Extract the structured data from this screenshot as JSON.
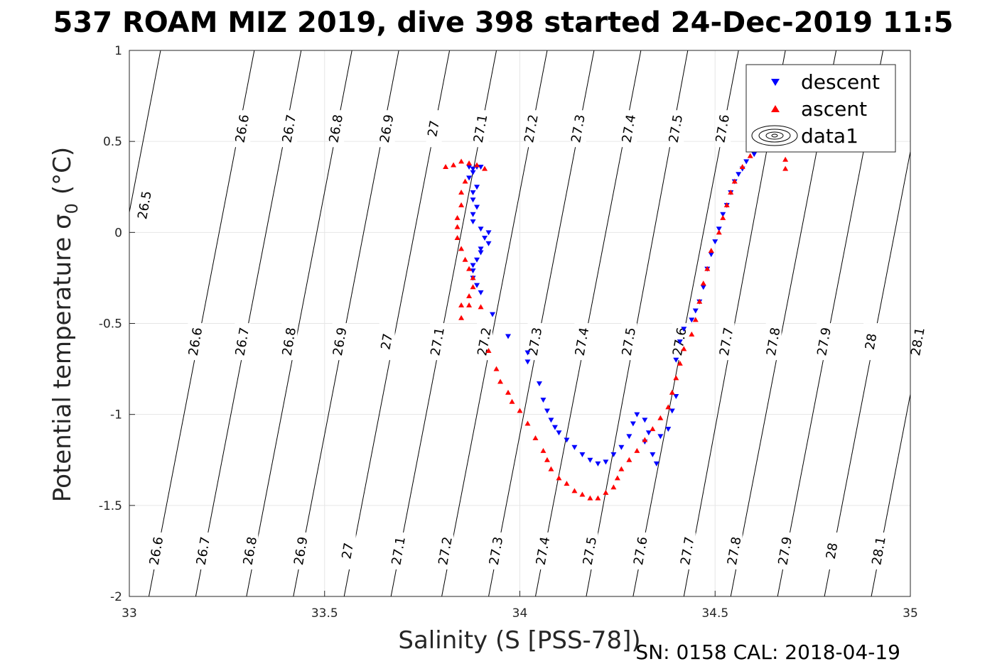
{
  "chart_data": {
    "type": "scatter",
    "title": "537 ROAM MIZ 2019, dive 398 started 24-Dec-2019 11:5",
    "xlabel": "Salinity (S [PSS-78])",
    "ylabel": "Potential temperature σ",
    "ylabel_sub": "0",
    "ylabel_unit": "(°C)",
    "xlim": [
      33,
      35
    ],
    "ylim": [
      -2,
      1
    ],
    "x_ticks": [
      "33",
      "33.5",
      "34",
      "34.5",
      "35"
    ],
    "y_ticks": [
      "-2",
      "-1.5",
      "-1",
      "-0.5",
      "0",
      "0.5",
      "1"
    ],
    "grid": true,
    "legend_position": "top-right",
    "footer": "SN: 0158  CAL: 2018-04-19",
    "series": [
      {
        "name": "descent",
        "marker": "triangle-down",
        "color": "#0000ff",
        "points": [
          [
            33.89,
            0.36
          ],
          [
            33.88,
            0.35
          ],
          [
            33.87,
            0.36
          ],
          [
            33.9,
            0.36
          ],
          [
            33.88,
            0.33
          ],
          [
            33.87,
            0.3
          ],
          [
            33.89,
            0.25
          ],
          [
            33.88,
            0.22
          ],
          [
            33.88,
            0.18
          ],
          [
            33.89,
            0.14
          ],
          [
            33.88,
            0.1
          ],
          [
            33.88,
            0.06
          ],
          [
            33.9,
            0.02
          ],
          [
            33.92,
            0.0
          ],
          [
            33.91,
            -0.03
          ],
          [
            33.92,
            -0.06
          ],
          [
            33.9,
            -0.09
          ],
          [
            33.9,
            -0.11
          ],
          [
            33.89,
            -0.15
          ],
          [
            33.88,
            -0.18
          ],
          [
            33.88,
            -0.21
          ],
          [
            33.88,
            -0.25
          ],
          [
            33.89,
            -0.29
          ],
          [
            33.9,
            -0.33
          ],
          [
            33.93,
            -0.45
          ],
          [
            33.97,
            -0.57
          ],
          [
            34.02,
            -0.66
          ],
          [
            34.02,
            -0.71
          ],
          [
            34.05,
            -0.83
          ],
          [
            34.06,
            -0.92
          ],
          [
            34.07,
            -0.98
          ],
          [
            34.08,
            -1.03
          ],
          [
            34.09,
            -1.07
          ],
          [
            34.1,
            -1.1
          ],
          [
            34.12,
            -1.14
          ],
          [
            34.14,
            -1.18
          ],
          [
            34.16,
            -1.22
          ],
          [
            34.18,
            -1.25
          ],
          [
            34.2,
            -1.27
          ],
          [
            34.22,
            -1.26
          ],
          [
            34.24,
            -1.22
          ],
          [
            34.26,
            -1.18
          ],
          [
            34.28,
            -1.12
          ],
          [
            34.29,
            -1.05
          ],
          [
            34.3,
            -1.0
          ],
          [
            34.32,
            -1.03
          ],
          [
            34.33,
            -1.1
          ],
          [
            34.32,
            -1.15
          ],
          [
            34.34,
            -1.22
          ],
          [
            34.35,
            -1.27
          ],
          [
            34.36,
            -1.12
          ],
          [
            34.38,
            -1.08
          ],
          [
            34.39,
            -0.98
          ],
          [
            34.4,
            -0.9
          ],
          [
            34.4,
            -0.7
          ],
          [
            34.41,
            -0.6
          ],
          [
            34.42,
            -0.53
          ],
          [
            34.44,
            -0.48
          ],
          [
            34.45,
            -0.43
          ],
          [
            34.46,
            -0.38
          ],
          [
            34.47,
            -0.3
          ],
          [
            34.48,
            -0.2
          ],
          [
            34.49,
            -0.12
          ],
          [
            34.5,
            -0.05
          ],
          [
            34.51,
            0.02
          ],
          [
            34.52,
            0.1
          ],
          [
            34.53,
            0.15
          ],
          [
            34.54,
            0.22
          ],
          [
            34.55,
            0.28
          ],
          [
            34.56,
            0.32
          ],
          [
            34.57,
            0.35
          ],
          [
            34.58,
            0.39
          ],
          [
            34.6,
            0.43
          ],
          [
            34.62,
            0.48
          ]
        ]
      },
      {
        "name": "ascent",
        "marker": "triangle-up",
        "color": "#ff0000",
        "points": [
          [
            33.81,
            0.36
          ],
          [
            33.83,
            0.37
          ],
          [
            33.85,
            0.39
          ],
          [
            33.87,
            0.38
          ],
          [
            33.89,
            0.37
          ],
          [
            33.91,
            0.35
          ],
          [
            33.86,
            0.28
          ],
          [
            33.85,
            0.22
          ],
          [
            33.85,
            0.15
          ],
          [
            33.84,
            0.08
          ],
          [
            33.84,
            0.03
          ],
          [
            33.84,
            -0.03
          ],
          [
            33.85,
            -0.09
          ],
          [
            33.86,
            -0.15
          ],
          [
            33.87,
            -0.2
          ],
          [
            33.88,
            -0.25
          ],
          [
            33.88,
            -0.3
          ],
          [
            33.87,
            -0.35
          ],
          [
            33.87,
            -0.4
          ],
          [
            33.85,
            -0.4
          ],
          [
            33.9,
            -0.41
          ],
          [
            33.85,
            -0.47
          ],
          [
            33.92,
            -0.65
          ],
          [
            33.94,
            -0.75
          ],
          [
            33.95,
            -0.82
          ],
          [
            33.97,
            -0.88
          ],
          [
            33.98,
            -0.93
          ],
          [
            34.0,
            -0.98
          ],
          [
            34.02,
            -1.05
          ],
          [
            34.04,
            -1.13
          ],
          [
            34.06,
            -1.2
          ],
          [
            34.07,
            -1.25
          ],
          [
            34.08,
            -1.3
          ],
          [
            34.1,
            -1.35
          ],
          [
            34.12,
            -1.38
          ],
          [
            34.14,
            -1.42
          ],
          [
            34.16,
            -1.44
          ],
          [
            34.18,
            -1.46
          ],
          [
            34.2,
            -1.46
          ],
          [
            34.22,
            -1.43
          ],
          [
            34.24,
            -1.4
          ],
          [
            34.25,
            -1.35
          ],
          [
            34.26,
            -1.3
          ],
          [
            34.28,
            -1.25
          ],
          [
            34.3,
            -1.2
          ],
          [
            34.32,
            -1.14
          ],
          [
            34.34,
            -1.08
          ],
          [
            34.36,
            -1.02
          ],
          [
            34.38,
            -0.96
          ],
          [
            34.39,
            -0.88
          ],
          [
            34.4,
            -0.8
          ],
          [
            34.41,
            -0.72
          ],
          [
            34.42,
            -0.64
          ],
          [
            34.44,
            -0.56
          ],
          [
            34.45,
            -0.48
          ],
          [
            34.46,
            -0.38
          ],
          [
            34.47,
            -0.28
          ],
          [
            34.48,
            -0.2
          ],
          [
            34.49,
            -0.1
          ],
          [
            34.51,
            0.0
          ],
          [
            34.52,
            0.08
          ],
          [
            34.53,
            0.15
          ],
          [
            34.54,
            0.22
          ],
          [
            34.55,
            0.28
          ],
          [
            34.57,
            0.36
          ],
          [
            34.59,
            0.42
          ],
          [
            34.61,
            0.48
          ],
          [
            34.63,
            0.52
          ],
          [
            34.68,
            0.4
          ],
          [
            34.68,
            0.35
          ]
        ]
      },
      {
        "name": "data1",
        "marker": "contour",
        "color": "#000000",
        "points": []
      }
    ],
    "contours": [
      {
        "label": "26.5",
        "bottom_x": null,
        "top_x": 33.08,
        "labels_at": [
          [
            33.04,
            0.15
          ]
        ]
      },
      {
        "label": "26.6",
        "bottom_x": 33.05,
        "top_x": 33.32,
        "labels_at": [
          [
            33.07,
            -1.75
          ],
          [
            33.17,
            -0.6
          ],
          [
            33.29,
            0.57
          ]
        ]
      },
      {
        "label": "26.7",
        "bottom_x": 33.17,
        "top_x": 33.44,
        "labels_at": [
          [
            33.19,
            -1.75
          ],
          [
            33.29,
            -0.6
          ],
          [
            33.41,
            0.57
          ]
        ]
      },
      {
        "label": "26.8",
        "bottom_x": 33.3,
        "top_x": 33.57,
        "labels_at": [
          [
            33.31,
            -1.75
          ],
          [
            33.41,
            -0.6
          ],
          [
            33.53,
            0.57
          ]
        ]
      },
      {
        "label": "26.9",
        "bottom_x": 33.42,
        "top_x": 33.69,
        "labels_at": [
          [
            33.44,
            -1.75
          ],
          [
            33.54,
            -0.6
          ],
          [
            33.66,
            0.57
          ]
        ]
      },
      {
        "label": "27",
        "bottom_x": 33.55,
        "top_x": 33.82,
        "labels_at": [
          [
            33.56,
            -1.75
          ],
          [
            33.66,
            -0.6
          ],
          [
            33.78,
            0.57
          ]
        ]
      },
      {
        "label": "27.1",
        "bottom_x": 33.67,
        "top_x": 33.94,
        "labels_at": [
          [
            33.69,
            -1.75
          ],
          [
            33.79,
            -0.6
          ],
          [
            33.9,
            0.57
          ]
        ]
      },
      {
        "label": "27.2",
        "bottom_x": 33.8,
        "top_x": 34.07,
        "labels_at": [
          [
            33.81,
            -1.75
          ],
          [
            33.91,
            -0.6
          ],
          [
            34.03,
            0.57
          ]
        ]
      },
      {
        "label": "27.3",
        "bottom_x": 33.92,
        "top_x": 34.19,
        "labels_at": [
          [
            33.94,
            -1.75
          ],
          [
            34.04,
            -0.6
          ],
          [
            34.15,
            0.57
          ]
        ]
      },
      {
        "label": "27.4",
        "bottom_x": 34.04,
        "top_x": 34.31,
        "labels_at": [
          [
            34.06,
            -1.75
          ],
          [
            34.16,
            -0.6
          ],
          [
            34.28,
            0.57
          ]
        ]
      },
      {
        "label": "27.5",
        "bottom_x": 34.17,
        "top_x": 34.43,
        "labels_at": [
          [
            34.18,
            -1.75
          ],
          [
            34.28,
            -0.6
          ],
          [
            34.4,
            0.57
          ]
        ]
      },
      {
        "label": "27.6",
        "bottom_x": 34.29,
        "top_x": 34.56,
        "labels_at": [
          [
            34.31,
            -1.75
          ],
          [
            34.41,
            -0.6
          ],
          [
            34.52,
            0.57
          ]
        ]
      },
      {
        "label": "27.7",
        "bottom_x": 34.42,
        "top_x": 34.68,
        "labels_at": [
          [
            34.43,
            -1.75
          ],
          [
            34.53,
            -0.6
          ],
          [
            34.65,
            0.57
          ]
        ]
      },
      {
        "label": "27.8",
        "bottom_x": 34.54,
        "top_x": 34.81,
        "labels_at": [
          [
            34.55,
            -1.75
          ],
          [
            34.65,
            -0.6
          ]
        ]
      },
      {
        "label": "27.9",
        "bottom_x": 34.66,
        "top_x": 34.93,
        "labels_at": [
          [
            34.68,
            -1.75
          ],
          [
            34.78,
            -0.6
          ]
        ]
      },
      {
        "label": "28",
        "bottom_x": 34.78,
        "top_x": 35.05,
        "labels_at": [
          [
            34.8,
            -1.75
          ],
          [
            34.9,
            -0.6
          ]
        ]
      },
      {
        "label": "28.1",
        "bottom_x": 34.9,
        "top_x": 35.17,
        "labels_at": [
          [
            34.92,
            -1.75
          ],
          [
            35.02,
            -0.6
          ]
        ]
      }
    ]
  }
}
